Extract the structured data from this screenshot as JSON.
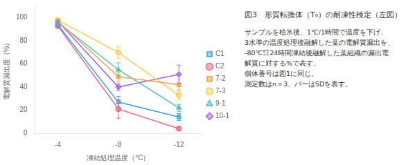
{
  "chart_data": {
    "type": "line",
    "title": "図3　形質転換体（T₀）の耐凍性検定（左図）",
    "annotations": [
      "サンプルを植氷後、1℃/1時間で温度を下げ、",
      "3水準の温度処理後融解した葉の電解質漏出を、",
      "-80℃㌌24時間凍結後融解した葉組織の漏出電",
      "解質に対する%で表す。",
      "個体番号は図1に同じ。",
      "測定数はn＝3、バーはSDを表す。"
    ],
    "xlabel": "凍結処理温度（°C）",
    "ylabel": "電解質漏出度（%）",
    "x": [
      -4,
      -8,
      -12
    ],
    "series": [
      {
        "name": "C1",
        "values": [
          94,
          27,
          14
        ],
        "errors": [
          2,
          5,
          3
        ],
        "marker": "square"
      },
      {
        "name": "C2",
        "values": [
          93,
          21,
          4
        ],
        "errors": [
          2,
          8,
          1
        ],
        "marker": "circle"
      },
      {
        "name": "7-2",
        "values": [
          97,
          49,
          42
        ],
        "errors": [
          1,
          4,
          5
        ],
        "marker": "square"
      },
      {
        "name": "7-3",
        "values": [
          98,
          70,
          33
        ],
        "errors": [
          1,
          5,
          4
        ],
        "marker": "circle"
      },
      {
        "name": "9-1",
        "values": [
          96,
          55,
          22
        ],
        "errors": [
          1,
          6,
          3
        ],
        "marker": "triangle"
      },
      {
        "name": "10-1",
        "values": [
          97,
          40,
          51
        ],
        "errors": [
          1,
          3,
          8
        ],
        "marker": "diamond"
      }
    ],
    "xlim": [
      -2.5,
      -13.5
    ],
    "xticks": [
      -4,
      -8,
      -12
    ],
    "ylim": [
      0,
      110
    ],
    "yticks": [
      0,
      20,
      40,
      60,
      80,
      100
    ],
    "grid": false,
    "legend": "right"
  }
}
